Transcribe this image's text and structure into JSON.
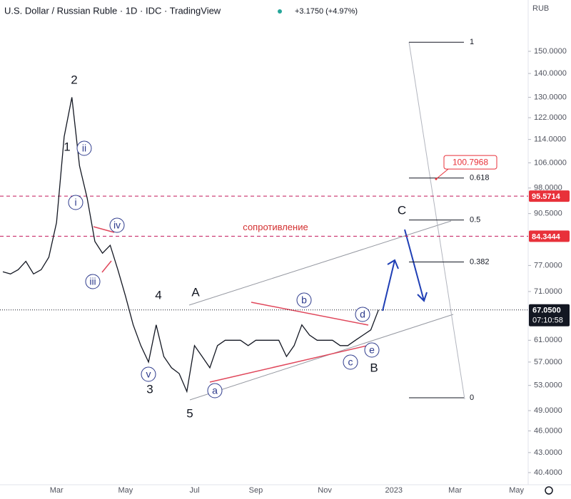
{
  "header": {
    "title": "U.S. Dollar / Russian Ruble · 1D · IDC · TradingView",
    "change": "+3.1750 (+4.97%)"
  },
  "chart_data": {
    "type": "line",
    "color": "#131722",
    "log_scale": true,
    "currency": "RUB",
    "categories": [
      null,
      null,
      null,
      null,
      null,
      null,
      null,
      "Mar",
      null,
      null,
      null,
      null,
      null,
      null,
      null,
      null,
      "May",
      null,
      null,
      null,
      null,
      null,
      null,
      null,
      null,
      "Jul",
      null,
      null,
      null,
      null,
      null,
      null,
      null,
      "Sep",
      null,
      null,
      null,
      null,
      null,
      null,
      null,
      null,
      "Nov",
      null,
      null,
      null,
      null,
      null,
      null,
      null,
      null,
      "2023",
      null,
      null,
      null,
      null,
      null,
      null,
      null,
      "Mar",
      null,
      null,
      null,
      null,
      null,
      null,
      null,
      "May"
    ],
    "values": [
      75.5,
      75,
      76,
      78,
      75,
      76,
      79,
      88,
      115,
      130,
      105,
      95,
      83,
      80,
      82,
      76,
      70,
      64,
      60,
      57,
      64,
      58,
      56,
      55,
      52,
      60,
      58,
      56,
      60,
      61,
      61,
      61,
      60,
      61,
      61,
      61,
      61,
      58,
      60,
      64,
      62,
      61,
      61,
      61,
      60,
      60,
      61,
      62,
      63,
      67.05,
      null,
      null,
      null,
      null,
      null,
      null,
      null,
      null,
      null,
      null,
      null,
      null,
      null,
      null,
      null,
      null,
      null,
      null
    ],
    "ylim": [
      38.9,
      176
    ],
    "yticks": [
      {
        "value": 150,
        "label": "150.0000"
      },
      {
        "value": 140,
        "label": "140.0000"
      },
      {
        "value": 130,
        "label": "130.0000"
      },
      {
        "value": 122,
        "label": "122.0000"
      },
      {
        "value": 114,
        "label": "114.0000"
      },
      {
        "value": 106,
        "label": "106.0000"
      },
      {
        "value": 98,
        "label": "98.0000"
      },
      {
        "value": 90.5,
        "label": "90.5000"
      },
      {
        "value": 77,
        "label": "77.0000"
      },
      {
        "value": 71,
        "label": "71.0000"
      },
      {
        "value": 61,
        "label": "61.0000"
      },
      {
        "value": 57,
        "label": "57.0000"
      },
      {
        "value": 53,
        "label": "53.0000"
      },
      {
        "value": 49,
        "label": "49.0000"
      },
      {
        "value": 46,
        "label": "46.0000"
      },
      {
        "value": 43,
        "label": "43.0000"
      },
      {
        "value": 40.4,
        "label": "40.4000"
      }
    ],
    "last_price": {
      "value": 67.05,
      "label": "67.0500"
    },
    "countdown": "07:10:58",
    "levels": [
      95.5714,
      84.3444
    ],
    "level_text": "сопротивление",
    "target": 100.7968,
    "fib": {
      "range": [
        51,
        154.3
      ],
      "levels": [
        1,
        0.618,
        0.5,
        0.382,
        0
      ]
    },
    "waves": [
      "1",
      "2",
      "3",
      "4",
      "5",
      "A",
      "B",
      "C"
    ],
    "subwaves": [
      "i",
      "ii",
      "iii",
      "iv",
      "v",
      "a",
      "b",
      "c",
      "d",
      "e"
    ]
  }
}
